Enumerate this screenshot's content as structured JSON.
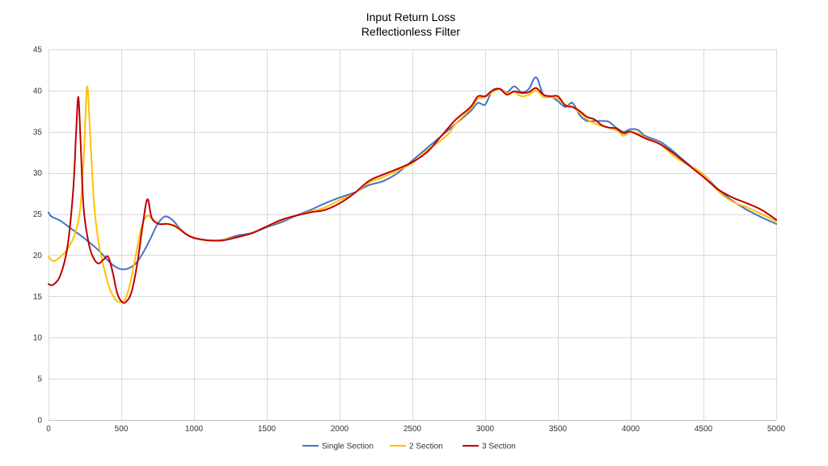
{
  "chart_data": {
    "type": "line",
    "title": [
      "Input Return Loss",
      "Reflectionless Filter"
    ],
    "xlabel": "",
    "ylabel": "",
    "xlim": [
      0,
      5000
    ],
    "ylim": [
      0,
      45
    ],
    "xticks": [
      0,
      500,
      1000,
      1500,
      2000,
      2500,
      3000,
      3500,
      4000,
      4500,
      5000
    ],
    "yticks": [
      0,
      5,
      10,
      15,
      20,
      25,
      30,
      35,
      40,
      45
    ],
    "grid": true,
    "legend_position": "bottom",
    "series": [
      {
        "name": "Single Section",
        "color": "#4472c4",
        "points": [
          [
            0,
            25.2
          ],
          [
            20,
            24.7
          ],
          [
            80,
            24.2
          ],
          [
            150,
            23.3
          ],
          [
            250,
            22.0
          ],
          [
            350,
            20.5
          ],
          [
            400,
            19.5
          ],
          [
            450,
            18.7
          ],
          [
            500,
            18.3
          ],
          [
            550,
            18.4
          ],
          [
            600,
            19.0
          ],
          [
            650,
            20.3
          ],
          [
            700,
            22.0
          ],
          [
            750,
            23.8
          ],
          [
            800,
            24.7
          ],
          [
            850,
            24.3
          ],
          [
            900,
            23.3
          ],
          [
            950,
            22.5
          ],
          [
            1000,
            22.1
          ],
          [
            1100,
            21.8
          ],
          [
            1200,
            21.9
          ],
          [
            1300,
            22.4
          ],
          [
            1400,
            22.7
          ],
          [
            1500,
            23.4
          ],
          [
            1600,
            24.0
          ],
          [
            1700,
            24.8
          ],
          [
            1800,
            25.5
          ],
          [
            1900,
            26.3
          ],
          [
            2000,
            27.0
          ],
          [
            2100,
            27.6
          ],
          [
            2200,
            28.5
          ],
          [
            2300,
            29.0
          ],
          [
            2400,
            30.0
          ],
          [
            2500,
            31.5
          ],
          [
            2600,
            33.0
          ],
          [
            2700,
            34.5
          ],
          [
            2800,
            36.0
          ],
          [
            2900,
            37.5
          ],
          [
            2950,
            38.5
          ],
          [
            3000,
            38.3
          ],
          [
            3050,
            40.0
          ],
          [
            3100,
            40.2
          ],
          [
            3150,
            39.8
          ],
          [
            3200,
            40.5
          ],
          [
            3250,
            39.8
          ],
          [
            3300,
            40.2
          ],
          [
            3350,
            41.6
          ],
          [
            3400,
            39.5
          ],
          [
            3450,
            39.3
          ],
          [
            3500,
            38.7
          ],
          [
            3550,
            38.0
          ],
          [
            3600,
            38.5
          ],
          [
            3650,
            37.0
          ],
          [
            3700,
            36.3
          ],
          [
            3750,
            36.3
          ],
          [
            3800,
            36.3
          ],
          [
            3850,
            36.2
          ],
          [
            3900,
            35.5
          ],
          [
            3950,
            35.0
          ],
          [
            4000,
            35.3
          ],
          [
            4050,
            35.2
          ],
          [
            4100,
            34.5
          ],
          [
            4200,
            33.8
          ],
          [
            4250,
            33.2
          ],
          [
            4300,
            32.5
          ],
          [
            4400,
            31.0
          ],
          [
            4500,
            29.8
          ],
          [
            4600,
            28.0
          ],
          [
            4700,
            26.6
          ],
          [
            4800,
            25.5
          ],
          [
            4900,
            24.6
          ],
          [
            5000,
            23.8
          ]
        ]
      },
      {
        "name": "2 Section",
        "color": "#ffc000",
        "points": [
          [
            0,
            19.8
          ],
          [
            30,
            19.3
          ],
          [
            60,
            19.5
          ],
          [
            120,
            20.5
          ],
          [
            180,
            22.5
          ],
          [
            220,
            26.0
          ],
          [
            245,
            33.0
          ],
          [
            265,
            40.5
          ],
          [
            285,
            35.0
          ],
          [
            310,
            27.0
          ],
          [
            340,
            22.0
          ],
          [
            380,
            18.5
          ],
          [
            420,
            16.0
          ],
          [
            460,
            14.6
          ],
          [
            500,
            14.3
          ],
          [
            530,
            14.8
          ],
          [
            560,
            16.5
          ],
          [
            600,
            20.0
          ],
          [
            640,
            23.5
          ],
          [
            680,
            24.8
          ],
          [
            720,
            24.3
          ],
          [
            760,
            23.8
          ],
          [
            820,
            23.8
          ],
          [
            880,
            23.5
          ],
          [
            950,
            22.5
          ],
          [
            1000,
            22.1
          ],
          [
            1100,
            21.8
          ],
          [
            1200,
            21.9
          ],
          [
            1300,
            22.2
          ],
          [
            1400,
            22.7
          ],
          [
            1500,
            23.5
          ],
          [
            1600,
            24.2
          ],
          [
            1700,
            24.8
          ],
          [
            1800,
            25.3
          ],
          [
            1900,
            25.8
          ],
          [
            2000,
            26.7
          ],
          [
            2100,
            27.5
          ],
          [
            2200,
            28.8
          ],
          [
            2300,
            29.5
          ],
          [
            2400,
            30.3
          ],
          [
            2500,
            31.2
          ],
          [
            2600,
            32.7
          ],
          [
            2700,
            34.0
          ],
          [
            2750,
            34.8
          ],
          [
            2800,
            36.0
          ],
          [
            2900,
            37.8
          ],
          [
            2950,
            39.0
          ],
          [
            3000,
            39.2
          ],
          [
            3050,
            39.8
          ],
          [
            3100,
            40.2
          ],
          [
            3150,
            39.7
          ],
          [
            3200,
            39.8
          ],
          [
            3250,
            39.3
          ],
          [
            3300,
            39.5
          ],
          [
            3350,
            40.0
          ],
          [
            3400,
            39.2
          ],
          [
            3450,
            39.2
          ],
          [
            3500,
            39.0
          ],
          [
            3550,
            38.3
          ],
          [
            3600,
            38.0
          ],
          [
            3650,
            37.3
          ],
          [
            3700,
            36.5
          ],
          [
            3750,
            36.0
          ],
          [
            3800,
            35.7
          ],
          [
            3900,
            35.2
          ],
          [
            3950,
            34.5
          ],
          [
            4000,
            35.0
          ],
          [
            4050,
            34.8
          ],
          [
            4100,
            34.3
          ],
          [
            4200,
            33.5
          ],
          [
            4300,
            32.0
          ],
          [
            4400,
            30.9
          ],
          [
            4500,
            29.8
          ],
          [
            4600,
            27.8
          ],
          [
            4700,
            26.5
          ],
          [
            4800,
            25.8
          ],
          [
            4900,
            25.0
          ],
          [
            5000,
            24.1
          ]
        ]
      },
      {
        "name": "3 Section",
        "color": "#c00000",
        "points": [
          [
            0,
            16.5
          ],
          [
            30,
            16.4
          ],
          [
            80,
            17.5
          ],
          [
            130,
            21.0
          ],
          [
            170,
            28.0
          ],
          [
            190,
            35.0
          ],
          [
            205,
            39.2
          ],
          [
            220,
            34.0
          ],
          [
            240,
            26.0
          ],
          [
            270,
            22.0
          ],
          [
            300,
            20.0
          ],
          [
            340,
            19.0
          ],
          [
            380,
            19.5
          ],
          [
            410,
            19.8
          ],
          [
            440,
            18.0
          ],
          [
            470,
            15.5
          ],
          [
            500,
            14.4
          ],
          [
            530,
            14.3
          ],
          [
            570,
            15.5
          ],
          [
            610,
            19.0
          ],
          [
            650,
            24.0
          ],
          [
            680,
            26.8
          ],
          [
            710,
            24.5
          ],
          [
            760,
            23.8
          ],
          [
            820,
            23.8
          ],
          [
            880,
            23.4
          ],
          [
            950,
            22.5
          ],
          [
            1000,
            22.1
          ],
          [
            1100,
            21.8
          ],
          [
            1200,
            21.8
          ],
          [
            1300,
            22.2
          ],
          [
            1400,
            22.7
          ],
          [
            1500,
            23.5
          ],
          [
            1600,
            24.3
          ],
          [
            1700,
            24.8
          ],
          [
            1800,
            25.2
          ],
          [
            1900,
            25.5
          ],
          [
            2000,
            26.3
          ],
          [
            2100,
            27.5
          ],
          [
            2200,
            29.0
          ],
          [
            2300,
            29.8
          ],
          [
            2400,
            30.5
          ],
          [
            2500,
            31.3
          ],
          [
            2600,
            32.5
          ],
          [
            2700,
            34.5
          ],
          [
            2800,
            36.5
          ],
          [
            2900,
            38.0
          ],
          [
            2950,
            39.3
          ],
          [
            3000,
            39.3
          ],
          [
            3050,
            40.0
          ],
          [
            3100,
            40.2
          ],
          [
            3150,
            39.5
          ],
          [
            3200,
            39.9
          ],
          [
            3250,
            39.7
          ],
          [
            3300,
            39.8
          ],
          [
            3350,
            40.3
          ],
          [
            3400,
            39.5
          ],
          [
            3450,
            39.3
          ],
          [
            3500,
            39.3
          ],
          [
            3550,
            38.2
          ],
          [
            3600,
            38.0
          ],
          [
            3650,
            37.5
          ],
          [
            3700,
            36.8
          ],
          [
            3750,
            36.5
          ],
          [
            3800,
            35.8
          ],
          [
            3850,
            35.5
          ],
          [
            3900,
            35.4
          ],
          [
            3950,
            34.8
          ],
          [
            4000,
            35.0
          ],
          [
            4100,
            34.2
          ],
          [
            4200,
            33.5
          ],
          [
            4300,
            32.3
          ],
          [
            4400,
            30.9
          ],
          [
            4500,
            29.5
          ],
          [
            4600,
            28.0
          ],
          [
            4700,
            27.0
          ],
          [
            4800,
            26.3
          ],
          [
            4900,
            25.5
          ],
          [
            5000,
            24.3
          ]
        ]
      }
    ]
  }
}
